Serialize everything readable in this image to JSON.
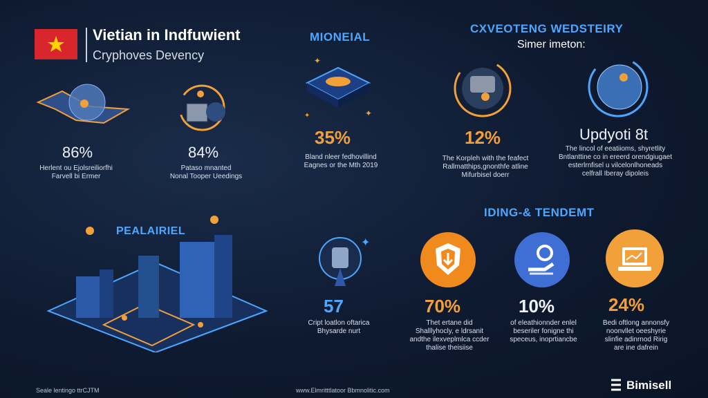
{
  "header": {
    "title": "Vietian in Indfuwient",
    "subtitle": "Cryphoves Devency"
  },
  "top_left_stats": [
    {
      "value": "86%",
      "caption": "Herlent ou Ejolsreiliorfhi\nFarvell bi Ermer"
    },
    {
      "value": "84%",
      "caption": "Pataso mnanted\nNonal Tooper Ueedings"
    }
  ],
  "mioneial": {
    "heading": "MIONEIAL",
    "value": "35%",
    "caption": "Bland nleer fedhovillind\nEagnes or the Mth 2019"
  },
  "wedstery": {
    "heading": "CXVEOTENG WEDSTEIRY",
    "subheading": "Simer imeton:",
    "stats": [
      {
        "value": "12%",
        "caption": "The Korpleh with the feafect\nRallmatthips,gnonthfe atline\nMifurbisel doerr"
      },
      {
        "value": "Updyoti 8t",
        "caption": "The lincol of eeatiioms, shyretlity\nBntlanttine co in ereerd orendgiugaet\nesterlrnfisel u vilcelonlhoneads\ncelfrall Iberay dipoleis"
      }
    ]
  },
  "pealairiel": {
    "heading": "PEALAIRIEL",
    "value": "57",
    "caption": "Cript loatlon oftarica\nBhysarde nurt"
  },
  "tendemt": {
    "heading": "IDING-& TENDEMT",
    "stats": [
      {
        "value": "70%",
        "caption": "Thet ertane did\nShalllyhocly, e ldrsanit\nandthe ilexveplmlca ccder\nthalise theisiise"
      },
      {
        "value": "10%",
        "caption": "of eleathionnder enlel\nbeseriler fonigne thi\nspeceus, inoprtiancbe"
      },
      {
        "value": "24%",
        "caption": "Bedi oftlong annonsfy\nnoonvllet oeeshyrie\nslinfie adinrnod Ririg\nare ine dafrein"
      }
    ]
  },
  "footer": {
    "left": "Seale lentingo ttrCJTM",
    "center": "www.Elmritttlatoor Bbmnolitic.com",
    "brand": "Bimisell"
  },
  "colors": {
    "background": "#0e1a30",
    "accent_blue": "#4ea7ff",
    "accent_orange": "#f2a03a",
    "flag_red": "#d8262c",
    "flag_star": "#ffd400"
  },
  "icons": [
    "vietnam-flag-icon",
    "globe-map-icon",
    "server-globe-icon",
    "mining-chip-icon",
    "coin-globe-icon",
    "blockchain-globe-icon",
    "city-isometric-icon",
    "crypto-rocket-icon",
    "shield-download-icon",
    "hand-pickaxe-icon",
    "laptop-chart-icon",
    "brand-logo-icon"
  ]
}
